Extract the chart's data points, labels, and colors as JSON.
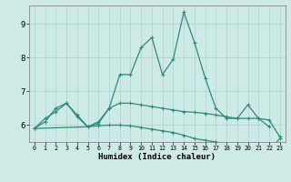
{
  "xlabel": "Humidex (Indice chaleur)",
  "x_values": [
    0,
    1,
    2,
    3,
    4,
    5,
    6,
    7,
    8,
    9,
    10,
    11,
    12,
    13,
    14,
    15,
    16,
    17,
    18,
    19,
    20,
    21,
    22,
    23
  ],
  "line1_y": [
    5.9,
    6.2,
    6.4,
    6.65,
    6.3,
    5.95,
    6.1,
    6.5,
    6.65,
    6.65,
    6.6,
    6.55,
    6.5,
    6.45,
    6.4,
    6.38,
    6.35,
    6.3,
    6.25,
    6.2,
    6.2,
    6.2,
    6.15,
    5.65
  ],
  "line2_x": [
    0,
    1,
    2,
    3,
    4,
    5,
    6,
    7,
    8,
    9,
    10,
    11,
    12,
    13,
    14,
    15,
    16,
    17,
    18,
    19,
    20,
    21,
    22
  ],
  "line2_y": [
    5.9,
    6.1,
    6.5,
    6.65,
    6.25,
    5.95,
    6.05,
    6.5,
    7.5,
    7.5,
    8.3,
    8.6,
    7.5,
    7.95,
    9.35,
    8.45,
    7.4,
    6.5,
    6.2,
    6.2,
    6.6,
    6.2,
    5.95
  ],
  "line3_x": [
    0,
    5,
    6,
    7,
    8,
    9,
    10,
    11,
    12,
    13,
    14,
    15,
    16,
    17,
    18,
    19,
    20,
    21,
    22,
    23
  ],
  "line3_y": [
    5.9,
    5.95,
    5.98,
    6.0,
    6.0,
    5.98,
    5.93,
    5.88,
    5.83,
    5.78,
    5.7,
    5.6,
    5.55,
    5.5,
    5.45,
    5.4,
    5.35,
    5.3,
    5.25,
    5.6
  ],
  "color": "#2e8b77",
  "bg_color": "#cdeae7",
  "grid_color": "#aad4d0",
  "ylim": [
    5.5,
    9.55
  ],
  "yticks": [
    6,
    7,
    8,
    9
  ],
  "xlim": [
    -0.5,
    23.5
  ]
}
